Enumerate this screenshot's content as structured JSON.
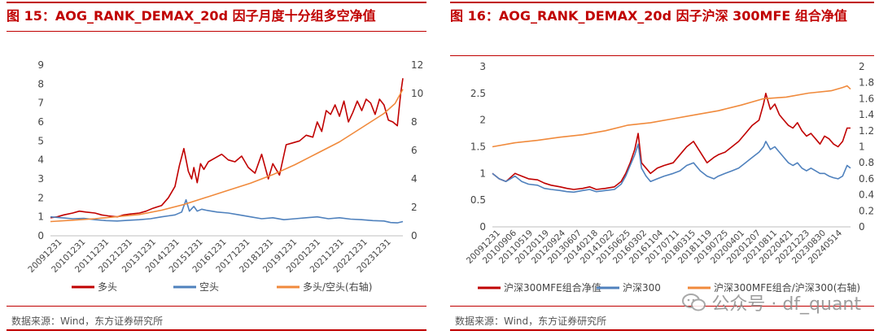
{
  "charts_meta": {
    "left": {
      "title": "图 15：AOG_RANK_DEMAX_20d 因子月度十分组多空净值",
      "source": "数据来源：Wind，东方证券研究所"
    },
    "right": {
      "title": "图 16：AOG_RANK_DEMAX_20d 因子沪深 300MFE 组合净值",
      "source": "数据来源：Wind，东方证券研究所"
    }
  },
  "watermark": {
    "text": "公众号 · df_quant"
  },
  "colors": {
    "red": "#c00000",
    "blue": "#4f81bd",
    "orange": "#f08a3c",
    "title_red": "#c00000"
  },
  "chart_data": [
    {
      "type": "line",
      "title": "图 15：AOG_RANK_DEMAX_20d 因子月度十分组多空净值",
      "xlabel": "",
      "ylabel": "",
      "ylim": [
        0,
        9
      ],
      "y2lim": [
        0,
        12
      ],
      "yticks": [
        0,
        1,
        2,
        3,
        4,
        5,
        6,
        7,
        8,
        9
      ],
      "y2ticks": [
        0,
        2,
        4,
        6,
        8,
        10,
        12
      ],
      "x_ticks": [
        "20091231",
        "20101231",
        "20111231",
        "20121231",
        "20131231",
        "20141231",
        "20151231",
        "20161231",
        "20171231",
        "20181231",
        "20191231",
        "20201231",
        "20211231",
        "20221231",
        "20231231"
      ],
      "legend_position": "bottom",
      "grid": false,
      "series": [
        {
          "name": "多头",
          "axis": "left",
          "color": "#c00000",
          "x": [
            2009.0,
            2009.3,
            2009.6,
            2010.0,
            2010.3,
            2010.6,
            2011.0,
            2011.3,
            2011.6,
            2012.0,
            2012.3,
            2012.6,
            2013.0,
            2013.3,
            2013.6,
            2014.0,
            2014.3,
            2014.6,
            2014.8,
            2015.0,
            2015.2,
            2015.35,
            2015.45,
            2015.6,
            2015.75,
            2015.9,
            2016.1,
            2016.4,
            2016.7,
            2017.0,
            2017.3,
            2017.6,
            2017.9,
            2018.2,
            2018.5,
            2018.8,
            2019.0,
            2019.3,
            2019.6,
            2019.9,
            2020.2,
            2020.5,
            2020.8,
            2021.0,
            2021.2,
            2021.4,
            2021.6,
            2021.8,
            2022.0,
            2022.2,
            2022.4,
            2022.6,
            2022.8,
            2023.0,
            2023.2,
            2023.4,
            2023.6,
            2023.8,
            2024.0,
            2024.2,
            2024.4,
            2024.6,
            2024.75,
            2024.85
          ],
          "values": [
            0.95,
            1.0,
            1.1,
            1.2,
            1.3,
            1.25,
            1.2,
            1.1,
            1.05,
            1.0,
            1.1,
            1.15,
            1.2,
            1.3,
            1.45,
            1.6,
            2.0,
            2.6,
            3.7,
            4.6,
            3.4,
            3.0,
            3.6,
            2.8,
            3.8,
            3.5,
            3.9,
            4.1,
            4.3,
            4.0,
            3.9,
            4.2,
            3.6,
            3.3,
            4.3,
            3.0,
            3.8,
            3.2,
            4.8,
            4.9,
            5.0,
            5.3,
            5.2,
            6.0,
            5.5,
            6.6,
            6.4,
            6.9,
            6.3,
            7.1,
            6.0,
            6.5,
            7.1,
            6.6,
            7.2,
            7.0,
            6.4,
            7.2,
            6.9,
            6.1,
            6.0,
            5.8,
            7.5,
            8.3
          ]
        },
        {
          "name": "空头",
          "axis": "left",
          "color": "#4f81bd",
          "x": [
            2009.0,
            2009.5,
            2010.0,
            2010.5,
            2011.0,
            2011.5,
            2012.0,
            2012.5,
            2013.0,
            2013.5,
            2014.0,
            2014.3,
            2014.6,
            2014.9,
            2015.1,
            2015.25,
            2015.45,
            2015.6,
            2015.8,
            2016.0,
            2016.5,
            2017.0,
            2017.5,
            2018.0,
            2018.5,
            2019.0,
            2019.5,
            2020.0,
            2020.5,
            2021.0,
            2021.5,
            2022.0,
            2022.5,
            2023.0,
            2023.5,
            2024.0,
            2024.3,
            2024.6,
            2024.85
          ],
          "values": [
            1.0,
            0.95,
            0.9,
            0.92,
            0.85,
            0.8,
            0.78,
            0.82,
            0.85,
            0.9,
            1.0,
            1.05,
            1.1,
            1.25,
            1.9,
            1.3,
            1.55,
            1.3,
            1.4,
            1.35,
            1.25,
            1.2,
            1.1,
            1.0,
            0.9,
            0.95,
            0.85,
            0.9,
            0.95,
            1.0,
            0.9,
            0.95,
            0.88,
            0.85,
            0.8,
            0.78,
            0.7,
            0.68,
            0.75
          ]
        },
        {
          "name": "多头/空头(右轴)",
          "axis": "right",
          "color": "#f08a3c",
          "x": [
            2009.0,
            2010.0,
            2011.0,
            2012.0,
            2013.0,
            2014.0,
            2015.0,
            2016.0,
            2017.0,
            2018.0,
            2019.0,
            2020.0,
            2021.0,
            2022.0,
            2023.0,
            2024.0,
            2024.5,
            2024.85
          ],
          "values": [
            1.0,
            1.1,
            1.2,
            1.35,
            1.5,
            1.8,
            2.2,
            2.7,
            3.2,
            3.7,
            4.3,
            5.0,
            5.8,
            6.6,
            7.6,
            8.6,
            9.3,
            10.3
          ]
        }
      ]
    },
    {
      "type": "line",
      "title": "图 16：AOG_RANK_DEMAX_20d 因子沪深 300MFE 组合净值",
      "xlabel": "",
      "ylabel": "",
      "ylim": [
        0,
        3
      ],
      "y2lim": [
        0,
        2
      ],
      "yticks": [
        0,
        0.5,
        1,
        1.5,
        2,
        2.5,
        3
      ],
      "y2ticks": [
        0,
        0.2,
        0.4,
        0.6,
        0.8,
        1,
        1.2,
        1.4,
        1.6,
        1.8,
        2
      ],
      "x_ticks": [
        "20091231",
        "20100906",
        "20110519",
        "20120119",
        "20120924",
        "20130607",
        "20140218",
        "20141022",
        "20150625",
        "20160302",
        "20161104",
        "20170711",
        "20180315",
        "20181119",
        "20190725",
        "20200401",
        "20201207",
        "20210811",
        "20220421",
        "20221223",
        "20230830",
        "20240514"
      ],
      "legend_position": "bottom",
      "grid": false,
      "series": [
        {
          "name": "沪深300MFE组合净值",
          "axis": "left",
          "color": "#c00000",
          "x": [
            2009.0,
            2009.3,
            2009.6,
            2010.0,
            2010.3,
            2010.6,
            2011.0,
            2011.3,
            2011.6,
            2012.0,
            2012.3,
            2012.6,
            2013.0,
            2013.3,
            2013.6,
            2014.0,
            2014.4,
            2014.7,
            2014.9,
            2015.1,
            2015.3,
            2015.45,
            2015.6,
            2015.8,
            2016.0,
            2016.3,
            2016.6,
            2017.0,
            2017.3,
            2017.6,
            2017.9,
            2018.2,
            2018.5,
            2018.8,
            2019.0,
            2019.3,
            2019.6,
            2019.9,
            2020.2,
            2020.5,
            2020.8,
            2021.0,
            2021.1,
            2021.3,
            2021.5,
            2021.7,
            2021.9,
            2022.1,
            2022.3,
            2022.5,
            2022.7,
            2022.9,
            2023.1,
            2023.3,
            2023.5,
            2023.7,
            2023.9,
            2024.1,
            2024.3,
            2024.5,
            2024.7,
            2024.85
          ],
          "values": [
            1.0,
            0.9,
            0.85,
            1.0,
            0.95,
            0.9,
            0.88,
            0.82,
            0.78,
            0.75,
            0.72,
            0.7,
            0.72,
            0.75,
            0.7,
            0.72,
            0.75,
            0.85,
            1.0,
            1.2,
            1.45,
            1.75,
            1.2,
            1.1,
            1.0,
            1.1,
            1.15,
            1.2,
            1.35,
            1.5,
            1.6,
            1.4,
            1.2,
            1.3,
            1.35,
            1.4,
            1.5,
            1.6,
            1.75,
            1.9,
            2.0,
            2.3,
            2.5,
            2.2,
            2.3,
            2.1,
            2.0,
            1.9,
            1.85,
            1.95,
            1.8,
            1.7,
            1.75,
            1.65,
            1.55,
            1.7,
            1.65,
            1.55,
            1.5,
            1.6,
            1.85,
            1.85
          ]
        },
        {
          "name": "沪深300",
          "axis": "left",
          "color": "#4f81bd",
          "x": [
            2009.0,
            2009.3,
            2009.6,
            2010.0,
            2010.3,
            2010.6,
            2011.0,
            2011.3,
            2011.6,
            2012.0,
            2012.3,
            2012.6,
            2013.0,
            2013.3,
            2013.6,
            2014.0,
            2014.4,
            2014.7,
            2014.9,
            2015.1,
            2015.3,
            2015.45,
            2015.6,
            2015.8,
            2016.0,
            2016.3,
            2016.6,
            2017.0,
            2017.3,
            2017.6,
            2017.9,
            2018.2,
            2018.5,
            2018.8,
            2019.0,
            2019.3,
            2019.6,
            2019.9,
            2020.2,
            2020.5,
            2020.8,
            2021.0,
            2021.1,
            2021.3,
            2021.5,
            2021.7,
            2021.9,
            2022.1,
            2022.3,
            2022.5,
            2022.7,
            2022.9,
            2023.1,
            2023.3,
            2023.5,
            2023.7,
            2023.9,
            2024.1,
            2024.3,
            2024.5,
            2024.7,
            2024.85
          ],
          "values": [
            1.0,
            0.9,
            0.85,
            0.95,
            0.85,
            0.8,
            0.78,
            0.72,
            0.7,
            0.68,
            0.66,
            0.65,
            0.68,
            0.7,
            0.66,
            0.68,
            0.7,
            0.8,
            0.95,
            1.15,
            1.35,
            1.55,
            1.1,
            0.95,
            0.85,
            0.9,
            0.95,
            1.0,
            1.05,
            1.15,
            1.2,
            1.05,
            0.95,
            0.9,
            0.95,
            1.0,
            1.05,
            1.1,
            1.2,
            1.3,
            1.4,
            1.5,
            1.6,
            1.45,
            1.5,
            1.4,
            1.3,
            1.2,
            1.15,
            1.2,
            1.1,
            1.05,
            1.1,
            1.05,
            1.0,
            1.0,
            0.95,
            0.92,
            0.9,
            0.95,
            1.15,
            1.1
          ]
        },
        {
          "name": "沪深300MFE组合/沪深300(右轴)",
          "axis": "right",
          "color": "#f08a3c",
          "x": [
            2009.0,
            2010.0,
            2011.0,
            2012.0,
            2013.0,
            2014.0,
            2015.0,
            2016.0,
            2017.0,
            2018.0,
            2019.0,
            2020.0,
            2021.0,
            2022.0,
            2023.0,
            2024.0,
            2024.5,
            2024.7,
            2024.85
          ],
          "values": [
            1.0,
            1.05,
            1.08,
            1.12,
            1.15,
            1.2,
            1.27,
            1.3,
            1.35,
            1.4,
            1.45,
            1.52,
            1.6,
            1.62,
            1.67,
            1.7,
            1.74,
            1.76,
            1.72
          ]
        }
      ]
    }
  ]
}
